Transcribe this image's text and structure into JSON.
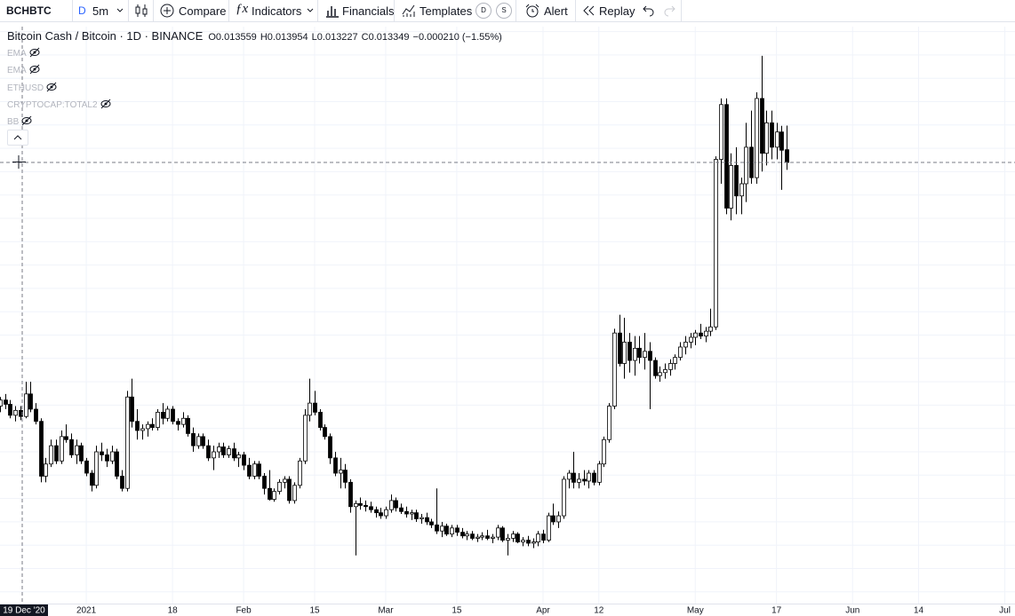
{
  "toolbar": {
    "symbol": "BCHBTC",
    "interval_prefix": "D",
    "interval": "5m",
    "compare": "Compare",
    "indicators": "Indicators",
    "financials": "Financials",
    "templates": "Templates",
    "template_d": "D",
    "template_s": "S",
    "alert": "Alert",
    "replay": "Replay"
  },
  "legend": {
    "title": "Bitcoin Cash / Bitcoin · 1D · BINANCE",
    "fields": [
      "O",
      "H",
      "L",
      "C"
    ],
    "change": "−0.000210 (−1.55%)",
    "studies": [
      "EMA",
      "EMA",
      "ETHUSD",
      "CRYPTOCAP:TOTAL2",
      "BB"
    ]
  },
  "chart_data": {
    "type": "candlestick",
    "up_color": "#ffffff",
    "down_color": "#000000",
    "wick_color": "#000000",
    "grid": true,
    "crosshair_label": "19 Dec '20",
    "xlim": [
      "2020-12-15",
      "2021-07-03"
    ],
    "xticks": [
      {
        "value": "2021-01-01",
        "label": "2021"
      },
      {
        "value": "2021-01-18",
        "label": "18"
      },
      {
        "value": "2021-02-01",
        "label": "Feb"
      },
      {
        "value": "2021-02-15",
        "label": "15"
      },
      {
        "value": "2021-03-01",
        "label": "Mar"
      },
      {
        "value": "2021-03-15",
        "label": "15"
      },
      {
        "value": "2021-04-01",
        "label": "Apr"
      },
      {
        "value": "2021-04-12",
        "label": "12"
      },
      {
        "value": "2021-05-01",
        "label": "May"
      },
      {
        "value": "2021-05-17",
        "label": "17"
      },
      {
        "value": "2021-06-01",
        "label": "Jun"
      },
      {
        "value": "2021-06-14",
        "label": "14"
      },
      {
        "value": "2021-07-01",
        "label": "Jul"
      }
    ],
    "ylim": [
      0.006109,
      0.015579
    ],
    "x": [
      "2020-12-15",
      "2020-12-16",
      "2020-12-17",
      "2020-12-18",
      "2020-12-19",
      "2020-12-20",
      "2020-12-21",
      "2020-12-22",
      "2020-12-23",
      "2020-12-24",
      "2020-12-25",
      "2020-12-26",
      "2020-12-27",
      "2020-12-28",
      "2020-12-29",
      "2020-12-30",
      "2020-12-31",
      "2021-01-01",
      "2021-01-02",
      "2021-01-03",
      "2021-01-04",
      "2021-01-05",
      "2021-01-06",
      "2021-01-07",
      "2021-01-08",
      "2021-01-09",
      "2021-01-10",
      "2021-01-11",
      "2021-01-12",
      "2021-01-13",
      "2021-01-14",
      "2021-01-15",
      "2021-01-16",
      "2021-01-17",
      "2021-01-18",
      "2021-01-19",
      "2021-01-20",
      "2021-01-21",
      "2021-01-22",
      "2021-01-23",
      "2021-01-24",
      "2021-01-25",
      "2021-01-26",
      "2021-01-27",
      "2021-01-28",
      "2021-01-29",
      "2021-01-30",
      "2021-01-31",
      "2021-02-01",
      "2021-02-02",
      "2021-02-03",
      "2021-02-04",
      "2021-02-05",
      "2021-02-06",
      "2021-02-07",
      "2021-02-08",
      "2021-02-09",
      "2021-02-10",
      "2021-02-11",
      "2021-02-12",
      "2021-02-13",
      "2021-02-14",
      "2021-02-15",
      "2021-02-16",
      "2021-02-17",
      "2021-02-18",
      "2021-02-19",
      "2021-02-20",
      "2021-02-21",
      "2021-02-22",
      "2021-02-23",
      "2021-02-24",
      "2021-02-25",
      "2021-02-26",
      "2021-02-27",
      "2021-02-28",
      "2021-03-01",
      "2021-03-02",
      "2021-03-03",
      "2021-03-04",
      "2021-03-05",
      "2021-03-06",
      "2021-03-07",
      "2021-03-08",
      "2021-03-09",
      "2021-03-10",
      "2021-03-11",
      "2021-03-12",
      "2021-03-13",
      "2021-03-14",
      "2021-03-15",
      "2021-03-16",
      "2021-03-17",
      "2021-03-18",
      "2021-03-19",
      "2021-03-20",
      "2021-03-21",
      "2021-03-22",
      "2021-03-23",
      "2021-03-24",
      "2021-03-25",
      "2021-03-26",
      "2021-03-27",
      "2021-03-28",
      "2021-03-29",
      "2021-03-30",
      "2021-03-31",
      "2021-04-01",
      "2021-04-02",
      "2021-04-03",
      "2021-04-04",
      "2021-04-05",
      "2021-04-06",
      "2021-04-07",
      "2021-04-08",
      "2021-04-09",
      "2021-04-10",
      "2021-04-11",
      "2021-04-12",
      "2021-04-13",
      "2021-04-14",
      "2021-04-15",
      "2021-04-16",
      "2021-04-17",
      "2021-04-18",
      "2021-04-19",
      "2021-04-20",
      "2021-04-21",
      "2021-04-22",
      "2021-04-23",
      "2021-04-24",
      "2021-04-25",
      "2021-04-26",
      "2021-04-27",
      "2021-04-28",
      "2021-04-29",
      "2021-04-30",
      "2021-05-01",
      "2021-05-02",
      "2021-05-03",
      "2021-05-04",
      "2021-05-05",
      "2021-05-06",
      "2021-05-07",
      "2021-05-08",
      "2021-05-09",
      "2021-05-10",
      "2021-05-11",
      "2021-05-12",
      "2021-05-13",
      "2021-05-14",
      "2021-05-15",
      "2021-05-16",
      "2021-05-17",
      "2021-05-18",
      "2021-05-19"
    ],
    "ohlc": [
      [
        0.00935,
        0.0095,
        0.00925,
        0.00945
      ],
      [
        0.00945,
        0.00955,
        0.0093,
        0.00938
      ],
      [
        0.00938,
        0.00945,
        0.00915,
        0.0092
      ],
      [
        0.0092,
        0.00935,
        0.0091,
        0.00928
      ],
      [
        0.00928,
        0.00935,
        0.00912,
        0.00918
      ],
      [
        0.00918,
        0.00975,
        0.00915,
        0.00955
      ],
      [
        0.00955,
        0.00975,
        0.00925,
        0.0093
      ],
      [
        0.0093,
        0.0094,
        0.00905,
        0.0091
      ],
      [
        0.0091,
        0.00915,
        0.0081,
        0.0082
      ],
      [
        0.0082,
        0.0085,
        0.0081,
        0.0084
      ],
      [
        0.0084,
        0.0088,
        0.00835,
        0.0087
      ],
      [
        0.0087,
        0.0088,
        0.0084,
        0.00845
      ],
      [
        0.00845,
        0.00895,
        0.0084,
        0.00885
      ],
      [
        0.00885,
        0.00905,
        0.00875,
        0.0088
      ],
      [
        0.0088,
        0.0089,
        0.0085,
        0.00855
      ],
      [
        0.00855,
        0.0088,
        0.0084,
        0.0087
      ],
      [
        0.0087,
        0.00875,
        0.0084,
        0.00845
      ],
      [
        0.00845,
        0.0085,
        0.0082,
        0.00825
      ],
      [
        0.00825,
        0.0083,
        0.00795,
        0.00805
      ],
      [
        0.00805,
        0.0087,
        0.008,
        0.0086
      ],
      [
        0.0086,
        0.00875,
        0.00845,
        0.00855
      ],
      [
        0.00855,
        0.00865,
        0.00835,
        0.00845
      ],
      [
        0.00845,
        0.0087,
        0.0084,
        0.0086
      ],
      [
        0.0086,
        0.00865,
        0.00815,
        0.0082
      ],
      [
        0.0082,
        0.0083,
        0.00795,
        0.008
      ],
      [
        0.008,
        0.0096,
        0.00795,
        0.0095
      ],
      [
        0.0095,
        0.0098,
        0.009,
        0.0091
      ],
      [
        0.0091,
        0.0093,
        0.0088,
        0.00895
      ],
      [
        0.00895,
        0.00905,
        0.0088,
        0.00898
      ],
      [
        0.00898,
        0.0091,
        0.00885,
        0.00905
      ],
      [
        0.00905,
        0.00915,
        0.00895,
        0.009
      ],
      [
        0.009,
        0.0093,
        0.00895,
        0.00925
      ],
      [
        0.00925,
        0.0094,
        0.00905,
        0.00915
      ],
      [
        0.00915,
        0.00935,
        0.0091,
        0.0093
      ],
      [
        0.0093,
        0.00935,
        0.00905,
        0.0091
      ],
      [
        0.0091,
        0.00915,
        0.00895,
        0.00905
      ],
      [
        0.00905,
        0.00925,
        0.009,
        0.00915
      ],
      [
        0.00915,
        0.0092,
        0.00885,
        0.0089
      ],
      [
        0.0089,
        0.009,
        0.0086,
        0.0087
      ],
      [
        0.0087,
        0.0089,
        0.00865,
        0.00885
      ],
      [
        0.00885,
        0.0089,
        0.00865,
        0.0087
      ],
      [
        0.0087,
        0.0088,
        0.00845,
        0.0085
      ],
      [
        0.0085,
        0.0087,
        0.0083,
        0.0086
      ],
      [
        0.0086,
        0.00875,
        0.0085,
        0.00868
      ],
      [
        0.00868,
        0.00875,
        0.0085,
        0.00855
      ],
      [
        0.00855,
        0.0087,
        0.0085,
        0.00865
      ],
      [
        0.00865,
        0.00875,
        0.00845,
        0.0085
      ],
      [
        0.0085,
        0.0086,
        0.00835,
        0.00855
      ],
      [
        0.00855,
        0.0086,
        0.0083,
        0.00838
      ],
      [
        0.00838,
        0.0085,
        0.00815,
        0.0082
      ],
      [
        0.0082,
        0.00845,
        0.00815,
        0.0084
      ],
      [
        0.0084,
        0.00845,
        0.00815,
        0.0082
      ],
      [
        0.0082,
        0.00825,
        0.0079,
        0.008
      ],
      [
        0.008,
        0.0083,
        0.0078,
        0.00782
      ],
      [
        0.00782,
        0.008,
        0.00778,
        0.00795
      ],
      [
        0.00795,
        0.00815,
        0.0079,
        0.0081
      ],
      [
        0.0081,
        0.0082,
        0.008,
        0.00815
      ],
      [
        0.00815,
        0.0082,
        0.00775,
        0.0078
      ],
      [
        0.0078,
        0.0081,
        0.00775,
        0.00805
      ],
      [
        0.00805,
        0.0085,
        0.008,
        0.00845
      ],
      [
        0.00845,
        0.0093,
        0.0084,
        0.0092
      ],
      [
        0.0092,
        0.0098,
        0.0091,
        0.0094
      ],
      [
        0.0094,
        0.0096,
        0.0092,
        0.00925
      ],
      [
        0.00925,
        0.0093,
        0.00895,
        0.009
      ],
      [
        0.009,
        0.00905,
        0.0088,
        0.00885
      ],
      [
        0.00885,
        0.0089,
        0.0084,
        0.0085
      ],
      [
        0.0085,
        0.0086,
        0.0082,
        0.00825
      ],
      [
        0.00825,
        0.0085,
        0.008,
        0.0083
      ],
      [
        0.0083,
        0.0084,
        0.008,
        0.0081
      ],
      [
        0.0081,
        0.00815,
        0.0076,
        0.0077
      ],
      [
        0.0077,
        0.0078,
        0.0069,
        0.00775
      ],
      [
        0.00775,
        0.00785,
        0.00765,
        0.00772
      ],
      [
        0.00772,
        0.0078,
        0.00762,
        0.0077
      ],
      [
        0.0077,
        0.00778,
        0.0076,
        0.00765
      ],
      [
        0.00765,
        0.0077,
        0.00752,
        0.0076
      ],
      [
        0.0076,
        0.00768,
        0.0075,
        0.00755
      ],
      [
        0.00755,
        0.0077,
        0.0075,
        0.00765
      ],
      [
        0.00765,
        0.0079,
        0.0076,
        0.0078
      ],
      [
        0.0078,
        0.00785,
        0.00762,
        0.00768
      ],
      [
        0.00768,
        0.00775,
        0.00758,
        0.00762
      ],
      [
        0.00762,
        0.0077,
        0.00752,
        0.00758
      ],
      [
        0.00758,
        0.00765,
        0.00748,
        0.0076
      ],
      [
        0.0076,
        0.00765,
        0.00745,
        0.0075
      ],
      [
        0.0075,
        0.00758,
        0.00742,
        0.00752
      ],
      [
        0.00752,
        0.0076,
        0.0074,
        0.00745
      ],
      [
        0.00745,
        0.0075,
        0.00735,
        0.0074
      ],
      [
        0.0074,
        0.008,
        0.00725,
        0.0073
      ],
      [
        0.0073,
        0.00745,
        0.0072,
        0.00738
      ],
      [
        0.00738,
        0.00742,
        0.00722,
        0.00725
      ],
      [
        0.00725,
        0.0074,
        0.0072,
        0.00735
      ],
      [
        0.00735,
        0.0074,
        0.00722,
        0.00728
      ],
      [
        0.00728,
        0.00735,
        0.00718,
        0.00722
      ],
      [
        0.00722,
        0.0073,
        0.00715,
        0.00725
      ],
      [
        0.00725,
        0.0073,
        0.00715,
        0.00718
      ],
      [
        0.00718,
        0.00725,
        0.00712,
        0.0072
      ],
      [
        0.0072,
        0.00728,
        0.00715,
        0.00722
      ],
      [
        0.00722,
        0.00732,
        0.00715,
        0.00718
      ],
      [
        0.00718,
        0.00725,
        0.0071,
        0.0072
      ],
      [
        0.0072,
        0.0074,
        0.00715,
        0.00735
      ],
      [
        0.00735,
        0.00738,
        0.00712,
        0.00715
      ],
      [
        0.00715,
        0.00725,
        0.0069,
        0.00718
      ],
      [
        0.00718,
        0.0073,
        0.00712,
        0.00725
      ],
      [
        0.00725,
        0.00728,
        0.0071,
        0.00712
      ],
      [
        0.00712,
        0.0072,
        0.00705,
        0.00715
      ],
      [
        0.00715,
        0.00722,
        0.00705,
        0.0071
      ],
      [
        0.0071,
        0.00718,
        0.00702,
        0.00712
      ],
      [
        0.00712,
        0.0073,
        0.00705,
        0.00725
      ],
      [
        0.00725,
        0.00732,
        0.0071,
        0.00715
      ],
      [
        0.00715,
        0.0076,
        0.00712,
        0.00755
      ],
      [
        0.00755,
        0.00775,
        0.0074,
        0.00745
      ],
      [
        0.00745,
        0.00762,
        0.00735,
        0.00755
      ],
      [
        0.00755,
        0.0082,
        0.0075,
        0.00815
      ],
      [
        0.00815,
        0.0083,
        0.008,
        0.00825
      ],
      [
        0.00825,
        0.0086,
        0.008,
        0.0081
      ],
      [
        0.0081,
        0.00825,
        0.008,
        0.00815
      ],
      [
        0.00815,
        0.0083,
        0.00805,
        0.00812
      ],
      [
        0.00812,
        0.0083,
        0.008,
        0.00825
      ],
      [
        0.00825,
        0.0083,
        0.00805,
        0.0081
      ],
      [
        0.0081,
        0.00845,
        0.00805,
        0.0084
      ],
      [
        0.0084,
        0.00885,
        0.00835,
        0.0088
      ],
      [
        0.0088,
        0.0094,
        0.00875,
        0.00935
      ],
      [
        0.00935,
        0.01062,
        0.0093,
        0.01055
      ],
      [
        0.01055,
        0.01085,
        0.01,
        0.01005
      ],
      [
        0.01005,
        0.0108,
        0.0098,
        0.0104
      ],
      [
        0.0104,
        0.01055,
        0.0099,
        0.0101
      ],
      [
        0.0101,
        0.0105,
        0.00985,
        0.0103
      ],
      [
        0.0103,
        0.0105,
        0.01005,
        0.01015
      ],
      [
        0.01015,
        0.01055,
        0.00995,
        0.01025
      ],
      [
        0.01025,
        0.0104,
        0.0093,
        0.0101
      ],
      [
        0.0101,
        0.01015,
        0.0098,
        0.00985
      ],
      [
        0.00985,
        0.01,
        0.00975,
        0.0099
      ],
      [
        0.0099,
        0.01005,
        0.0098,
        0.00995
      ],
      [
        0.00995,
        0.01012,
        0.00985,
        0.01005
      ],
      [
        0.01005,
        0.0102,
        0.00995,
        0.01015
      ],
      [
        0.01015,
        0.0104,
        0.0101,
        0.01032
      ],
      [
        0.01032,
        0.0105,
        0.0102,
        0.0104
      ],
      [
        0.0104,
        0.01055,
        0.0103,
        0.01048
      ],
      [
        0.01048,
        0.0106,
        0.01035,
        0.01055
      ],
      [
        0.01055,
        0.0107,
        0.01045,
        0.0105
      ],
      [
        0.0105,
        0.01065,
        0.0104,
        0.01058
      ],
      [
        0.01058,
        0.01095,
        0.0105,
        0.01065
      ],
      [
        0.01065,
        0.01345,
        0.0106,
        0.0134
      ],
      [
        0.0134,
        0.0144,
        0.013,
        0.0143
      ],
      [
        0.0143,
        0.0144,
        0.0125,
        0.0126
      ],
      [
        0.0126,
        0.0135,
        0.0124,
        0.0133
      ],
      [
        0.0133,
        0.0136,
        0.0125,
        0.0128
      ],
      [
        0.0128,
        0.0131,
        0.0125,
        0.013
      ],
      [
        0.013,
        0.014,
        0.0127,
        0.0136
      ],
      [
        0.0136,
        0.0142,
        0.013,
        0.0131
      ],
      [
        0.0131,
        0.0145,
        0.013,
        0.0144
      ],
      [
        0.0144,
        0.0151,
        0.0132,
        0.0135
      ],
      [
        0.0135,
        0.0142,
        0.0133,
        0.014
      ],
      [
        0.014,
        0.0142,
        0.0134,
        0.0136
      ],
      [
        0.0136,
        0.014,
        0.0134,
        0.01385
      ],
      [
        0.01385,
        0.01395,
        0.0129,
        0.01355
      ],
      [
        0.013559,
        0.013954,
        0.013227,
        0.013349
      ]
    ]
  }
}
